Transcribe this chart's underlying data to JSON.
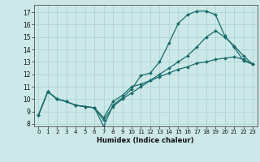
{
  "xlabel": "Humidex (Indice chaleur)",
  "ylabel": "",
  "xlim": [
    -0.5,
    23.5
  ],
  "ylim": [
    7.8,
    17.6
  ],
  "yticks": [
    8,
    9,
    10,
    11,
    12,
    13,
    14,
    15,
    16,
    17
  ],
  "xticks": [
    0,
    1,
    2,
    3,
    4,
    5,
    6,
    7,
    8,
    9,
    10,
    11,
    12,
    13,
    14,
    15,
    16,
    17,
    18,
    19,
    20,
    21,
    22,
    23
  ],
  "background_color": "#cce8e8",
  "grid_color": "#add4d4",
  "line_color": "#1a6b6b",
  "lines": [
    {
      "x": [
        0,
        1,
        2,
        3,
        4,
        5,
        6,
        7,
        8,
        9,
        10,
        11,
        12,
        13,
        14,
        15,
        16,
        17,
        18,
        19,
        20,
        21,
        22,
        23
      ],
      "y": [
        8.7,
        10.6,
        10.0,
        9.8,
        9.5,
        9.4,
        9.3,
        7.8,
        9.5,
        10.1,
        10.8,
        11.9,
        12.1,
        13.0,
        14.5,
        16.1,
        16.8,
        17.1,
        17.1,
        16.8,
        15.1,
        14.2,
        13.1,
        12.8
      ]
    },
    {
      "x": [
        0,
        1,
        2,
        3,
        4,
        5,
        6,
        7,
        8,
        9,
        10,
        11,
        12,
        13,
        14,
        15,
        16,
        17,
        18,
        19,
        20,
        21,
        22,
        23
      ],
      "y": [
        8.7,
        10.6,
        10.0,
        9.8,
        9.5,
        9.4,
        9.3,
        8.3,
        9.4,
        10.0,
        10.5,
        11.0,
        11.5,
        12.0,
        12.5,
        13.0,
        13.5,
        14.2,
        15.0,
        15.5,
        15.0,
        14.3,
        13.5,
        12.8
      ]
    },
    {
      "x": [
        0,
        1,
        2,
        3,
        4,
        5,
        6,
        7,
        8,
        9,
        10,
        11,
        12,
        13,
        14,
        15,
        16,
        17,
        18,
        19,
        20,
        21,
        22,
        23
      ],
      "y": [
        8.7,
        10.6,
        10.0,
        9.8,
        9.5,
        9.4,
        9.3,
        8.5,
        9.8,
        10.3,
        11.0,
        11.2,
        11.5,
        11.8,
        12.1,
        12.4,
        12.6,
        12.9,
        13.0,
        13.2,
        13.3,
        13.4,
        13.2,
        12.8
      ]
    }
  ]
}
